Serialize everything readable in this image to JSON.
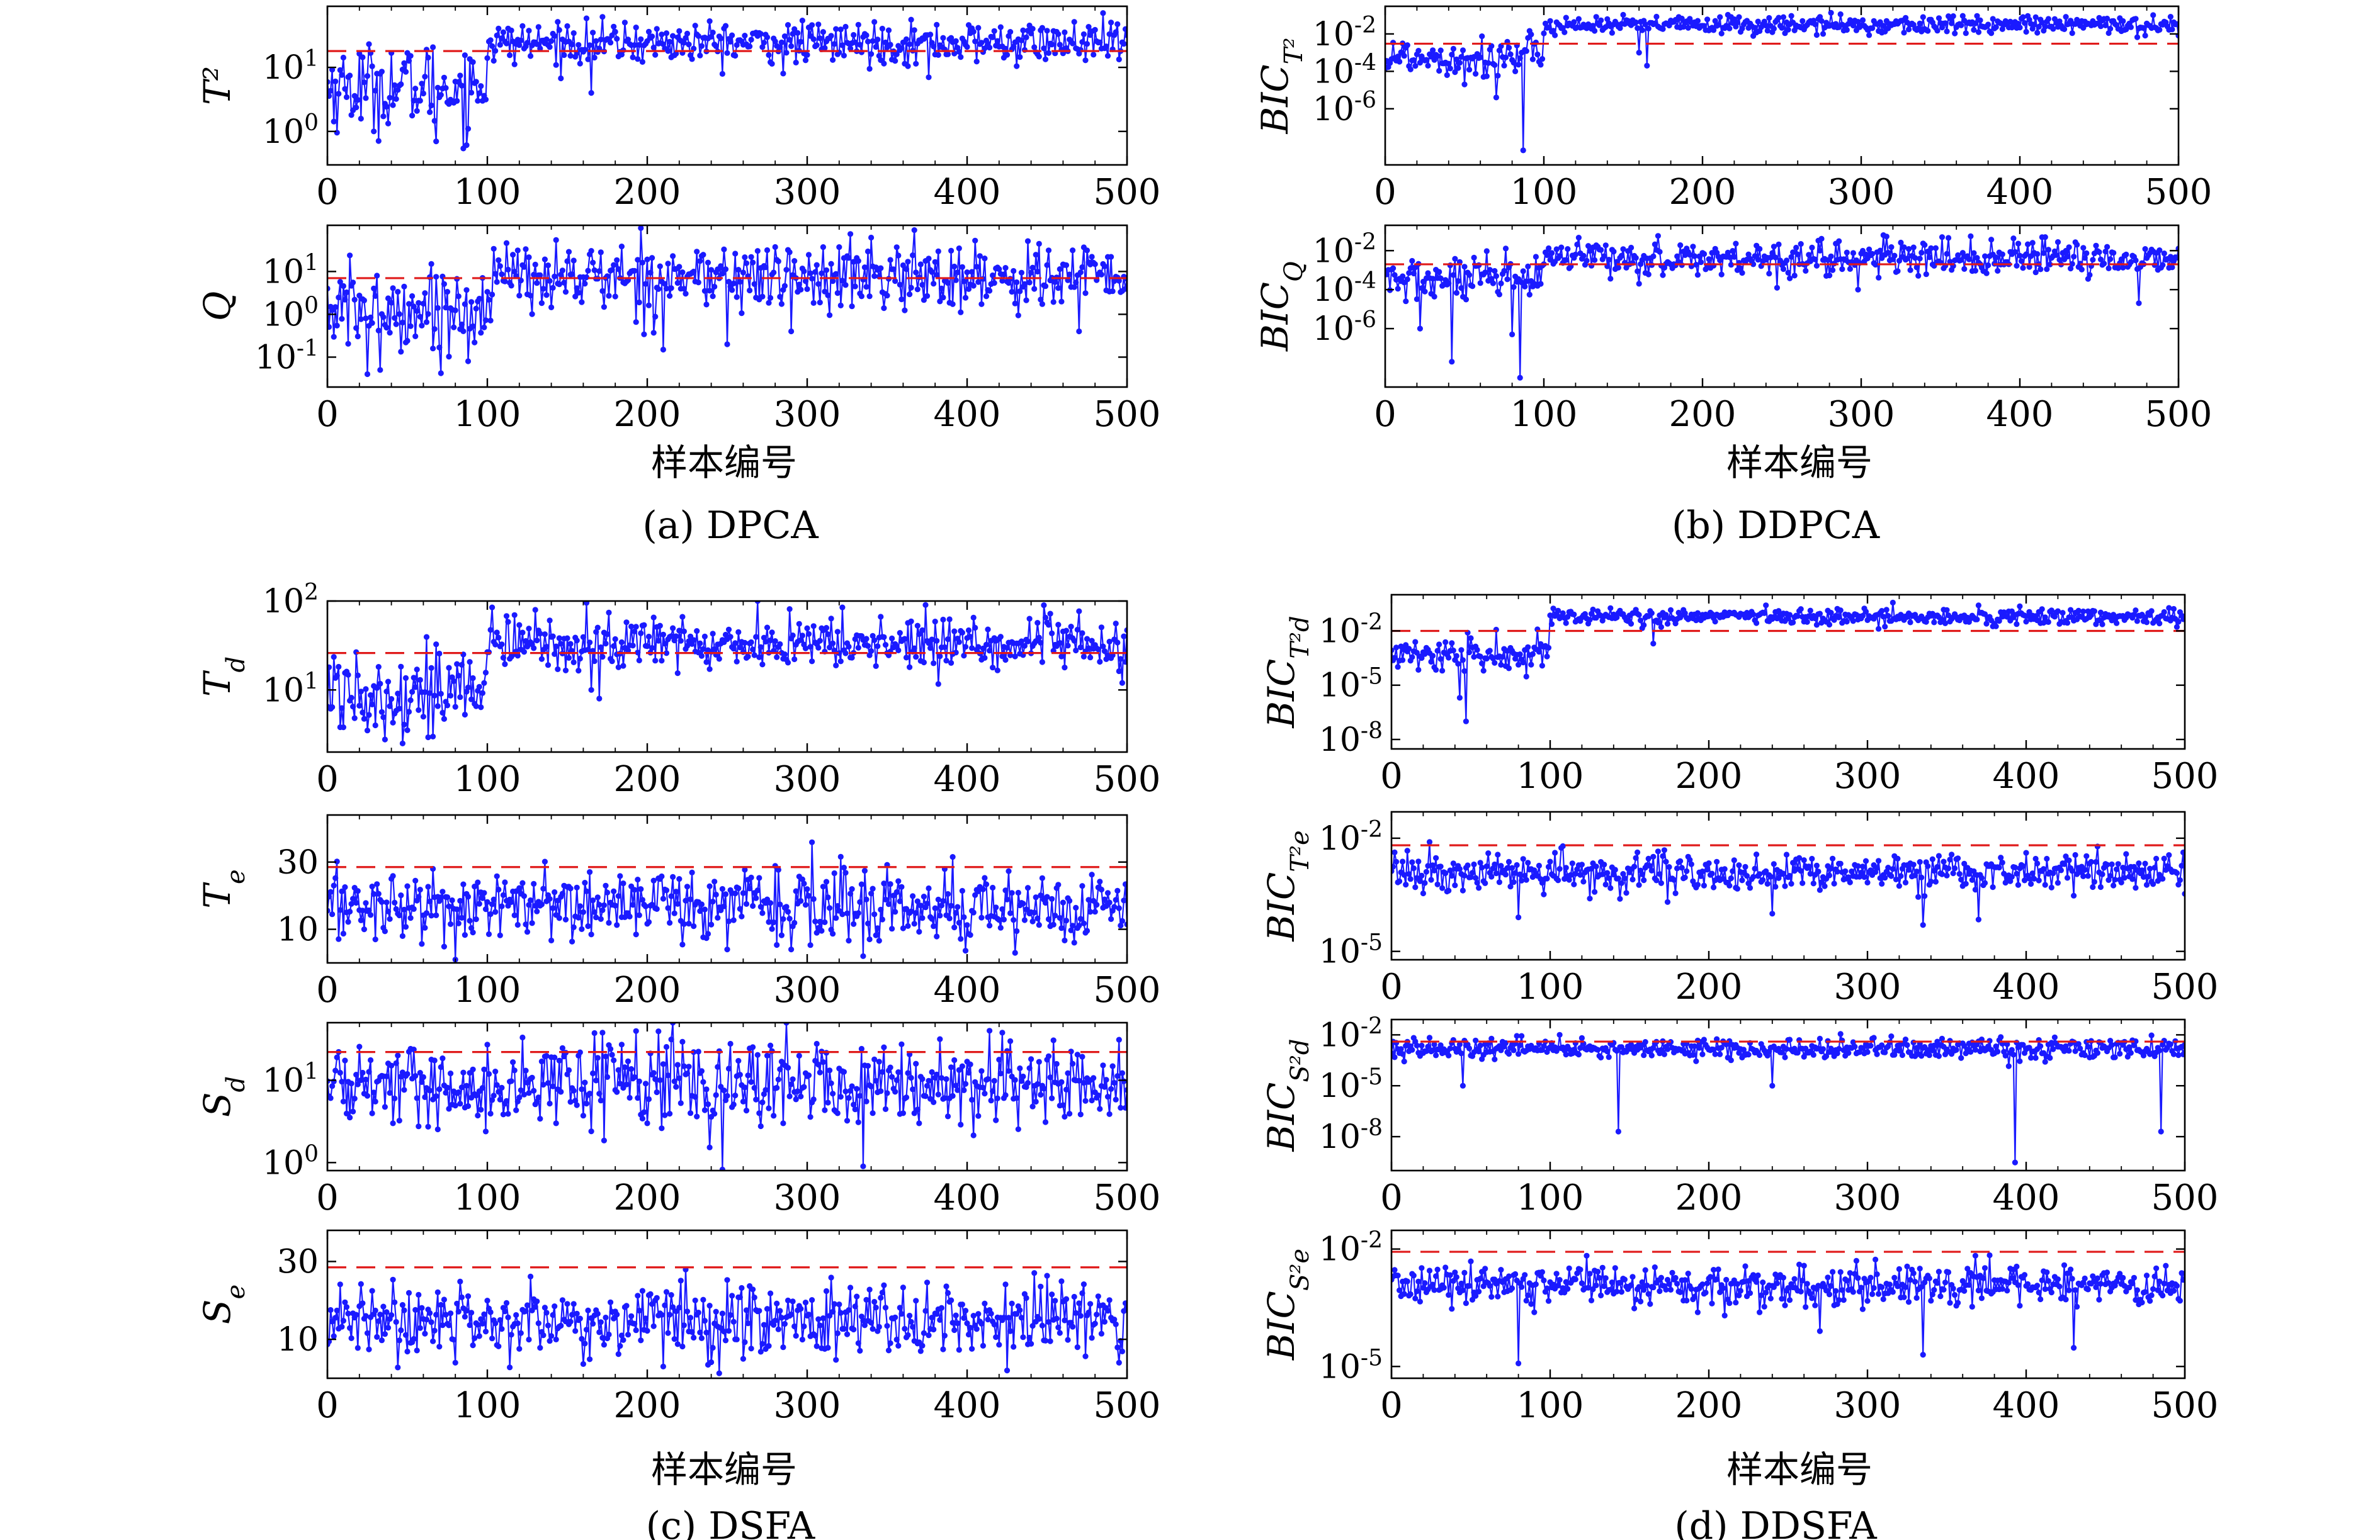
{
  "colors": {
    "series": "#1a1aff",
    "threshold": "#e01a1a",
    "axis": "#000000"
  },
  "captions": {
    "a": "(a) DPCA",
    "b": "(b) DDPCA",
    "c": "(c) DSFA",
    "d": "(d) DDSFA"
  },
  "xlabel": "样本编号",
  "chart_data": [
    {
      "id": "a1",
      "type": "line",
      "panel": "a",
      "ylabel": "T²",
      "yscale": "log",
      "ylim": [
        0.3,
        90
      ],
      "xlim": [
        0,
        500
      ],
      "xticks": [
        0,
        100,
        200,
        300,
        400,
        500
      ],
      "yticks": [
        {
          "v": 1,
          "base": "10",
          "exp": "0"
        },
        {
          "v": 10,
          "base": "10",
          "exp": "1"
        }
      ],
      "threshold": 18,
      "fault_start": 100,
      "pre": {
        "center": 5,
        "spread": 0.75,
        "dips": [
          [
            68,
            0.7
          ],
          [
            88,
            1.1
          ],
          [
            15,
            1.8
          ]
        ]
      },
      "post": {
        "center": 24,
        "spread": 0.35,
        "dips": [
          [
            165,
            4
          ],
          [
            285,
            8
          ],
          [
            376,
            7
          ]
        ]
      }
    },
    {
      "id": "a2",
      "type": "line",
      "panel": "a",
      "ylabel": "Q",
      "yscale": "log",
      "ylim": [
        0.02,
        120
      ],
      "xlim": [
        0,
        500
      ],
      "xticks": [
        0,
        100,
        200,
        300,
        400,
        500
      ],
      "yticks": [
        {
          "v": 0.1,
          "base": "10",
          "exp": "-1"
        },
        {
          "v": 1,
          "base": "10",
          "exp": "0"
        },
        {
          "v": 10,
          "base": "10",
          "exp": "1"
        }
      ],
      "threshold": 7,
      "fault_start": 100,
      "pre": {
        "center": 1.3,
        "spread": 1.1,
        "dips": [
          [
            25,
            0.04
          ],
          [
            33,
            0.05
          ],
          [
            88,
            0.08
          ]
        ]
      },
      "post": {
        "center": 7.5,
        "spread": 0.9,
        "dips": [
          [
            210,
            0.15
          ],
          [
            250,
            0.2
          ],
          [
            290,
            0.4
          ],
          [
            470,
            0.4
          ]
        ]
      }
    },
    {
      "id": "b1",
      "type": "line",
      "panel": "b",
      "ylabel": "BIC",
      "ysub": "T²",
      "yscale": "log",
      "ylim": [
        1e-09,
        0.3
      ],
      "xlim": [
        0,
        500
      ],
      "xticks": [
        0,
        100,
        200,
        300,
        400,
        500
      ],
      "yticks": [
        {
          "v": 1e-06,
          "base": "10",
          "exp": "-6"
        },
        {
          "v": 0.0001,
          "base": "10",
          "exp": "-4"
        },
        {
          "v": 0.01,
          "base": "10",
          "exp": "-2"
        }
      ],
      "threshold": 0.003,
      "fault_start": 100,
      "pre": {
        "center": 0.0006,
        "spread": 1.2,
        "dips": [
          [
            70,
            4e-06
          ],
          [
            87,
            6e-09
          ],
          [
            50,
            2e-05
          ]
        ]
      },
      "post": {
        "center": 0.03,
        "spread": 0.55,
        "dips": [
          [
            165,
            0.0002
          ],
          [
            160,
            0.001
          ]
        ]
      }
    },
    {
      "id": "b2",
      "type": "line",
      "panel": "b",
      "ylabel": "BIC",
      "ysub": "Q",
      "yscale": "log",
      "ylim": [
        1e-09,
        0.2
      ],
      "xlim": [
        0,
        500
      ],
      "xticks": [
        0,
        100,
        200,
        300,
        400,
        500
      ],
      "yticks": [
        {
          "v": 1e-06,
          "base": "10",
          "exp": "-6"
        },
        {
          "v": 0.0001,
          "base": "10",
          "exp": "-4"
        },
        {
          "v": 0.01,
          "base": "10",
          "exp": "-2"
        }
      ],
      "threshold": 0.002,
      "fault_start": 100,
      "pre": {
        "center": 0.0003,
        "spread": 1.3,
        "dips": [
          [
            42,
            2e-08
          ],
          [
            85,
            3e-09
          ],
          [
            80,
            5e-07
          ],
          [
            22,
            1e-06
          ]
        ]
      },
      "post": {
        "center": 0.004,
        "spread": 1.0,
        "dips": [
          [
            475,
            2e-05
          ],
          [
            298,
            0.0001
          ],
          [
            160,
            0.0002
          ]
        ]
      }
    },
    {
      "id": "c1",
      "type": "line",
      "panel": "c",
      "ylabel": "T",
      "ysub": "d",
      "yscale": "log",
      "ylim": [
        2,
        100
      ],
      "xlim": [
        0,
        500
      ],
      "xticks": [
        0,
        100,
        200,
        300,
        400,
        500
      ],
      "yticks": [
        {
          "v": 10,
          "base": "10",
          "exp": "1"
        },
        {
          "v": 100,
          "base": "10",
          "exp": "2"
        }
      ],
      "threshold": 26,
      "fault_start": 100,
      "pre": {
        "center": 10,
        "spread": 0.55,
        "dips": [
          [
            47,
            2.5
          ],
          [
            30,
            4
          ],
          [
            60,
            5
          ]
        ]
      },
      "post": {
        "center": 33,
        "spread": 0.35,
        "dips": [
          [
            165,
            10
          ],
          [
            170,
            8
          ],
          [
            497,
            12
          ]
        ]
      }
    },
    {
      "id": "c2",
      "type": "line",
      "panel": "c",
      "ylabel": "T",
      "ysub": "e",
      "yscale": "linear",
      "ylim": [
        0,
        44
      ],
      "xlim": [
        0,
        500
      ],
      "xticks": [
        0,
        100,
        200,
        300,
        400,
        500
      ],
      "yticks": [
        {
          "v": 10,
          "label": "10"
        },
        {
          "v": 30,
          "label": "30"
        }
      ],
      "threshold": 28.5,
      "fault_start": null,
      "pre": {
        "center": 17,
        "spread": 7,
        "dips": [
          [
            80,
            1
          ],
          [
            335,
            2
          ],
          [
            430,
            3
          ]
        ]
      },
      "post": {
        "center": 17,
        "spread": 7,
        "dips": [
          [
            250,
            4
          ],
          [
            290,
            4
          ]
        ]
      }
    },
    {
      "id": "c3",
      "type": "line",
      "panel": "c",
      "ylabel": "S",
      "ysub": "d",
      "yscale": "log",
      "ylim": [
        0.8,
        50
      ],
      "xlim": [
        0,
        500
      ],
      "xticks": [
        0,
        100,
        200,
        300,
        400,
        500
      ],
      "yticks": [
        {
          "v": 1,
          "base": "10",
          "exp": "0"
        },
        {
          "v": 10,
          "base": "10",
          "exp": "1"
        }
      ],
      "threshold": 22,
      "fault_start": null,
      "pre": {
        "center": 9,
        "spread": 0.55,
        "dips": [
          [
            335,
            0.9
          ],
          [
            143,
            3
          ],
          [
            370,
            3
          ]
        ]
      },
      "post": {
        "center": 9,
        "spread": 0.55,
        "dips": [
          [
            200,
            3
          ],
          [
            285,
            3
          ]
        ]
      }
    },
    {
      "id": "c4",
      "type": "line",
      "panel": "c",
      "ylabel": "S",
      "ysub": "e",
      "yscale": "linear",
      "ylim": [
        0,
        38
      ],
      "xlim": [
        0,
        500
      ],
      "xticks": [
        0,
        100,
        200,
        300,
        400,
        500
      ],
      "yticks": [
        {
          "v": 10,
          "label": "10"
        },
        {
          "v": 30,
          "label": "30"
        }
      ],
      "threshold": 28.5,
      "fault_start": null,
      "pre": {
        "center": 15,
        "spread": 6,
        "dips": [
          [
            80,
            4
          ],
          [
            425,
            2
          ],
          [
            495,
            4
          ]
        ]
      },
      "post": {
        "center": 15,
        "spread": 6,
        "dips": [
          [
            210,
            3
          ],
          [
            260,
            5
          ]
        ]
      }
    },
    {
      "id": "d1",
      "type": "line",
      "panel": "d",
      "ylabel": "BIC",
      "ysub": "T²d",
      "yscale": "log",
      "ylim": [
        3e-09,
        1
      ],
      "xlim": [
        0,
        500
      ],
      "xticks": [
        0,
        100,
        200,
        300,
        400,
        500
      ],
      "yticks": [
        {
          "v": 1e-08,
          "base": "10",
          "exp": "-8"
        },
        {
          "v": 1e-05,
          "base": "10",
          "exp": "-5"
        },
        {
          "v": 0.01,
          "base": "10",
          "exp": "-2"
        }
      ],
      "threshold": 0.01,
      "fault_start": 100,
      "pre": {
        "center": 0.0005,
        "spread": 1.1,
        "dips": [
          [
            47,
            1e-07
          ],
          [
            43,
            2e-06
          ],
          [
            85,
            3e-05
          ]
        ]
      },
      "post": {
        "center": 0.06,
        "spread": 0.5,
        "dips": [
          [
            165,
            0.002
          ]
        ]
      }
    },
    {
      "id": "d2",
      "type": "line",
      "panel": "d",
      "ylabel": "BIC",
      "ysub": "T²e",
      "yscale": "log",
      "ylim": [
        6e-06,
        0.05
      ],
      "xlim": [
        0,
        500
      ],
      "xticks": [
        0,
        100,
        200,
        300,
        400,
        500
      ],
      "yticks": [
        {
          "v": 1e-05,
          "base": "10",
          "exp": "-5"
        },
        {
          "v": 0.01,
          "base": "10",
          "exp": "-2"
        }
      ],
      "threshold": 0.0065,
      "fault_start": null,
      "pre": {
        "center": 0.0012,
        "spread": 0.55,
        "dips": [
          [
            80,
            8e-05
          ],
          [
            335,
            5e-05
          ],
          [
            370,
            7e-05
          ]
        ]
      },
      "post": {
        "center": 0.0012,
        "spread": 0.55,
        "dips": [
          [
            240,
            0.0001
          ],
          [
            430,
            0.0003
          ]
        ]
      }
    },
    {
      "id": "d3",
      "type": "line",
      "panel": "d",
      "ylabel": "BIC",
      "ysub": "S²d",
      "yscale": "log",
      "ylim": [
        1e-10,
        0.08
      ],
      "xlim": [
        0,
        500
      ],
      "xticks": [
        0,
        100,
        200,
        300,
        400,
        500
      ],
      "yticks": [
        {
          "v": 1e-08,
          "base": "10",
          "exp": "-8"
        },
        {
          "v": 1e-05,
          "base": "10",
          "exp": "-5"
        },
        {
          "v": 0.01,
          "base": "10",
          "exp": "-2"
        }
      ],
      "threshold": 0.004,
      "fault_start": null,
      "pre": {
        "center": 0.0015,
        "spread": 0.65,
        "dips": [
          [
            143,
            2e-08
          ],
          [
            393,
            3e-10
          ],
          [
            485,
            2e-08
          ],
          [
            45,
            1e-05
          ]
        ]
      },
      "post": {
        "center": 0.0015,
        "spread": 0.65,
        "dips": [
          [
            240,
            1e-05
          ]
        ]
      }
    },
    {
      "id": "d4",
      "type": "line",
      "panel": "d",
      "ylabel": "BIC",
      "ysub": "S²e",
      "yscale": "log",
      "ylim": [
        5e-06,
        0.03
      ],
      "xlim": [
        0,
        500
      ],
      "xticks": [
        0,
        100,
        200,
        300,
        400,
        500
      ],
      "yticks": [
        {
          "v": 1e-05,
          "base": "10",
          "exp": "-5"
        },
        {
          "v": 0.01,
          "base": "10",
          "exp": "-2"
        }
      ],
      "threshold": 0.0085,
      "fault_start": null,
      "pre": {
        "center": 0.0012,
        "spread": 0.6,
        "dips": [
          [
            80,
            1.2e-05
          ],
          [
            335,
            2e-05
          ],
          [
            430,
            3e-05
          ],
          [
            270,
            8e-05
          ]
        ]
      },
      "post": {
        "center": 0.0012,
        "spread": 0.6,
        "dips": [
          [
            210,
            0.0002
          ]
        ]
      }
    }
  ]
}
